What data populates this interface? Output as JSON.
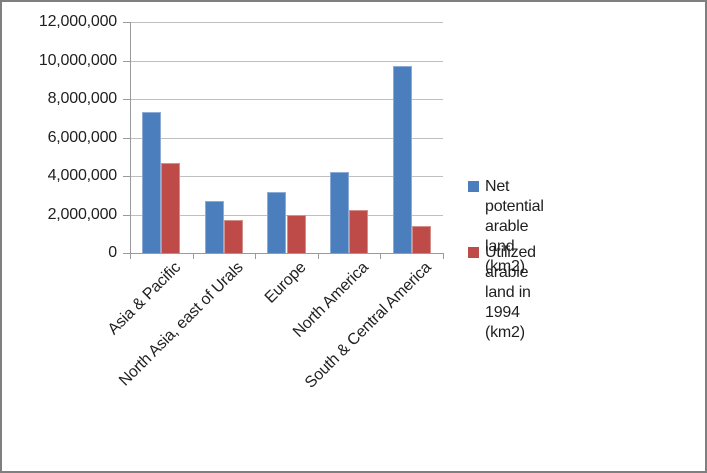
{
  "chart_data": {
    "type": "bar",
    "title": "",
    "xlabel": "",
    "ylabel": "",
    "categories": [
      "Asia & Pacific",
      "North Asia, east of Urals",
      "Europe",
      "North America",
      "South & Central America"
    ],
    "series": [
      {
        "name": "Net potential arable land (km2)",
        "legend_lines": [
          "Net potential arable land",
          "(km2)"
        ],
        "color": "#4A7EBD",
        "edge_color": "#8CABD5",
        "values": [
          7300000,
          2700000,
          3150000,
          4200000,
          9700000
        ]
      },
      {
        "name": "Utilized arable land in 1994 (km2)",
        "legend_lines": [
          "Utilized arable land in",
          "1994 (km2)"
        ],
        "color": "#BE4B48",
        "edge_color": "#D28F8C",
        "values": [
          4700000,
          1700000,
          1950000,
          2250000,
          1400000
        ]
      }
    ],
    "ylim": [
      0,
      12000000
    ],
    "ytick_step": 2000000,
    "ytick_labels": [
      "0",
      "2,000,000",
      "4,000,000",
      "6,000,000",
      "8,000,000",
      "10,000,000",
      "12,000,000"
    ],
    "grid": true,
    "legend_position": "right"
  },
  "colors": {
    "frame_border": "#7F7F7F",
    "gridline": "#BFBFBF",
    "axis": "#9A9A9A",
    "text": "#1F1F1F",
    "background": "#FFFFFF"
  }
}
